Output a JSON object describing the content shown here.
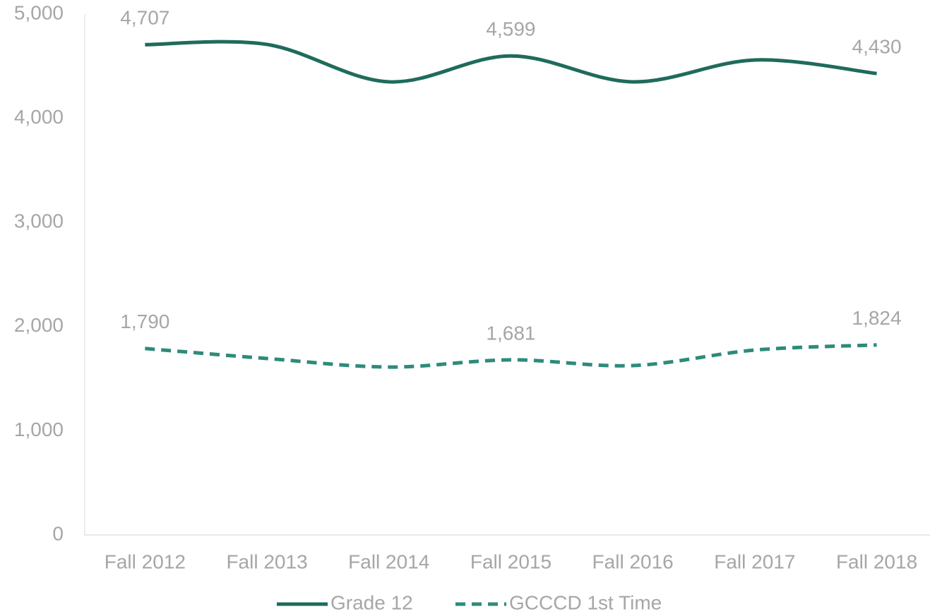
{
  "chart_data": {
    "type": "line",
    "categories": [
      "Fall 2012",
      "Fall 2013",
      "Fall 2014",
      "Fall 2015",
      "Fall 2016",
      "Fall 2017",
      "Fall 2018"
    ],
    "series": [
      {
        "name": "Grade 12",
        "color": "#1f6b5c",
        "dashed": false,
        "values": [
          4707,
          4709,
          4350,
          4599,
          4350,
          4560,
          4430
        ],
        "value_labels": [
          "4,707",
          null,
          null,
          "4,599",
          null,
          null,
          "4,430"
        ]
      },
      {
        "name": "GCCCD 1st Time",
        "color": "#2e8b7a",
        "dashed": true,
        "values": [
          1790,
          1694,
          1612,
          1681,
          1626,
          1775,
          1824
        ],
        "value_labels": [
          "1,790",
          null,
          null,
          "1,681",
          null,
          null,
          "1,824"
        ]
      }
    ],
    "ylim": [
      0,
      5000
    ],
    "yticks": [
      0,
      {
        "value": 1000,
        "label": "1,000"
      },
      {
        "value": 2000,
        "label": "2,000"
      },
      {
        "value": 3000,
        "label": "3,000"
      },
      {
        "value": 4000,
        "label": "4,000"
      },
      {
        "value": 5000,
        "label": "5,000"
      }
    ],
    "grid": false,
    "legend": "bottom"
  }
}
